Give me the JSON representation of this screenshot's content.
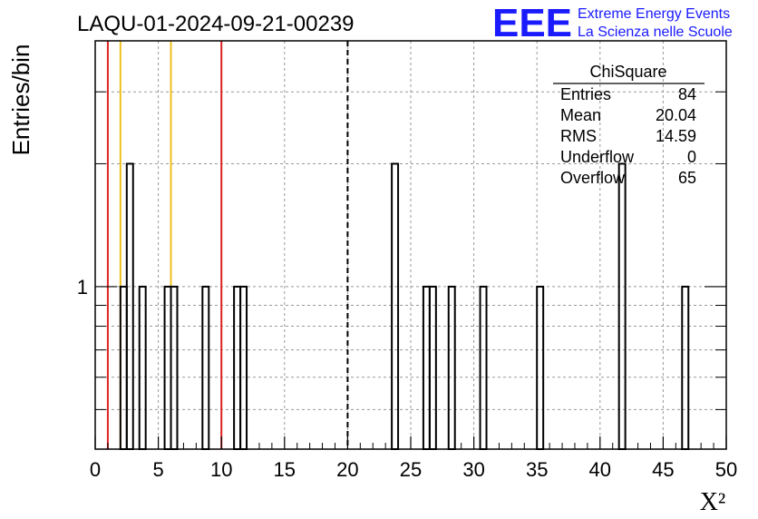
{
  "header": {
    "run_title": "LAQU-01-2024-09-21-00239",
    "logo_letters": "EEE",
    "logo_line1": "Extreme Energy Events",
    "logo_line2": "La Scienza nelle Scuole",
    "logo_color": "#1a1aff"
  },
  "stats": {
    "title": "ChiSquare",
    "rows": [
      {
        "label": "Entries",
        "value": "84"
      },
      {
        "label": "Mean",
        "value": "20.04"
      },
      {
        "label": "RMS",
        "value": "14.59"
      },
      {
        "label": "Underflow",
        "value": "0"
      },
      {
        "label": "Overflow",
        "value": "65"
      }
    ]
  },
  "chart_data": {
    "type": "bar",
    "histogram": true,
    "xlabel": "X²",
    "ylabel": "Entries/bin",
    "xlim": [
      0,
      50
    ],
    "ylim": [
      0.4,
      4
    ],
    "log_y": true,
    "bin_width": 0.5,
    "x_ticks": [
      "0",
      "5",
      "10",
      "15",
      "20",
      "25",
      "30",
      "35",
      "40",
      "45",
      "50"
    ],
    "y_ticks": [
      "1"
    ],
    "grid": true,
    "bins": [
      {
        "x": 2.0,
        "y": 1
      },
      {
        "x": 2.5,
        "y": 2
      },
      {
        "x": 3.5,
        "y": 1
      },
      {
        "x": 5.5,
        "y": 1
      },
      {
        "x": 6.0,
        "y": 1
      },
      {
        "x": 8.5,
        "y": 1
      },
      {
        "x": 11.0,
        "y": 1
      },
      {
        "x": 11.5,
        "y": 1
      },
      {
        "x": 23.5,
        "y": 2
      },
      {
        "x": 26.0,
        "y": 1
      },
      {
        "x": 26.5,
        "y": 1
      },
      {
        "x": 28.0,
        "y": 1
      },
      {
        "x": 30.5,
        "y": 1
      },
      {
        "x": 35.0,
        "y": 1
      },
      {
        "x": 41.5,
        "y": 2
      },
      {
        "x": 46.5,
        "y": 1
      }
    ],
    "vertical_lines": [
      {
        "x": 1,
        "color": "#dd2222",
        "style": "solid"
      },
      {
        "x": 2,
        "color": "#f0c020",
        "style": "solid"
      },
      {
        "x": 6,
        "color": "#f0c020",
        "style": "solid"
      },
      {
        "x": 10,
        "color": "#dd2222",
        "style": "solid"
      },
      {
        "x": 20,
        "color": "#000000",
        "style": "dashed"
      }
    ]
  }
}
